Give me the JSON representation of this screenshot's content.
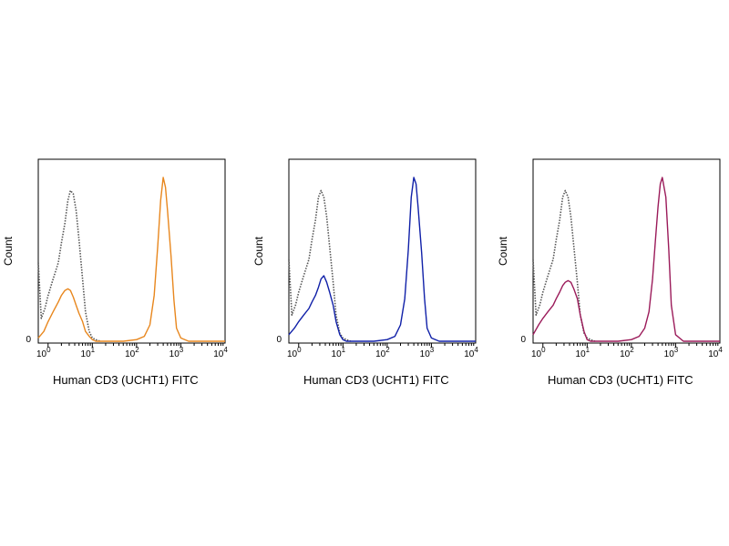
{
  "chart_data": [
    {
      "type": "line",
      "xlabel": "Human CD3 (UCHT1) FITC",
      "ylabel": "Count",
      "xscale": "log",
      "xlim": [
        0.6,
        10000
      ],
      "ylim": [
        0,
        100
      ],
      "x_tick_labels": [
        {
          "base": "10",
          "exp": "0"
        },
        {
          "base": "10",
          "exp": "1"
        },
        {
          "base": "10",
          "exp": "2"
        },
        {
          "base": "10",
          "exp": "3"
        },
        {
          "base": "10",
          "exp": "4"
        }
      ],
      "y_tick_labels": [
        "0"
      ],
      "series": [
        {
          "style": "dotted",
          "color": "#555555",
          "x": [
            0.6,
            0.7,
            0.85,
            1.0,
            1.3,
            1.7,
            2.0,
            2.4,
            2.8,
            3.2,
            3.7,
            4.3,
            5.0,
            6.0,
            7.0,
            8.5,
            10,
            12,
            15
          ],
          "y": [
            48,
            14,
            20,
            28,
            38,
            48,
            60,
            72,
            86,
            92,
            90,
            80,
            62,
            38,
            18,
            6,
            2,
            1,
            0
          ]
        },
        {
          "style": "solid",
          "color": "#e8871e",
          "x": [
            0.6,
            0.8,
            1.0,
            1.3,
            1.7,
            2.0,
            2.4,
            2.8,
            3.2,
            3.7,
            4.3,
            5.0,
            6.0,
            7.0,
            8.5,
            10,
            12,
            20,
            50,
            100,
            150,
            200,
            250,
            300,
            350,
            400,
            450,
            500,
            600,
            700,
            800,
            1000,
            1500,
            3000,
            10000
          ],
          "y": [
            2,
            6,
            12,
            18,
            24,
            28,
            31,
            32,
            31,
            27,
            22,
            17,
            12,
            6,
            3,
            1,
            0,
            0,
            0,
            1,
            3,
            10,
            28,
            58,
            86,
            100,
            94,
            80,
            52,
            25,
            8,
            2,
            0,
            0,
            0
          ]
        }
      ]
    },
    {
      "type": "line",
      "xlabel": "Human CD3 (UCHT1) FITC",
      "ylabel": "Count",
      "xscale": "log",
      "xlim": [
        0.6,
        10000
      ],
      "ylim": [
        0,
        100
      ],
      "x_tick_labels": [
        {
          "base": "10",
          "exp": "0"
        },
        {
          "base": "10",
          "exp": "1"
        },
        {
          "base": "10",
          "exp": "2"
        },
        {
          "base": "10",
          "exp": "3"
        },
        {
          "base": "10",
          "exp": "4"
        }
      ],
      "y_tick_labels": [
        "0"
      ],
      "series": [
        {
          "style": "dotted",
          "color": "#555555",
          "x": [
            0.6,
            0.7,
            0.85,
            1.0,
            1.3,
            1.7,
            2.0,
            2.4,
            2.8,
            3.2,
            3.7,
            4.3,
            5.0,
            6.0,
            7.0,
            8.5,
            10,
            12,
            15
          ],
          "y": [
            50,
            16,
            22,
            30,
            40,
            50,
            62,
            74,
            88,
            92,
            88,
            76,
            58,
            36,
            16,
            5,
            2,
            1,
            0
          ]
        },
        {
          "style": "solid",
          "color": "#1020a8",
          "x": [
            0.6,
            0.8,
            1.0,
            1.3,
            1.7,
            2.0,
            2.4,
            2.8,
            3.2,
            3.7,
            4.3,
            5.0,
            6.0,
            7.0,
            8.5,
            10,
            12,
            20,
            50,
            100,
            150,
            200,
            250,
            300,
            350,
            400,
            450,
            500,
            600,
            700,
            800,
            1000,
            1500,
            3000,
            10000
          ],
          "y": [
            4,
            8,
            12,
            16,
            20,
            24,
            28,
            33,
            38,
            40,
            36,
            30,
            22,
            12,
            4,
            1,
            0,
            0,
            0,
            1,
            3,
            10,
            26,
            56,
            88,
            100,
            96,
            82,
            54,
            26,
            8,
            2,
            0,
            0,
            0
          ]
        }
      ]
    },
    {
      "type": "line",
      "xlabel": "Human CD3 (UCHT1) FITC",
      "ylabel": "Count",
      "xscale": "log",
      "xlim": [
        0.6,
        10000
      ],
      "ylim": [
        0,
        100
      ],
      "x_tick_labels": [
        {
          "base": "10",
          "exp": "0"
        },
        {
          "base": "10",
          "exp": "1"
        },
        {
          "base": "10",
          "exp": "2"
        },
        {
          "base": "10",
          "exp": "3"
        },
        {
          "base": "10",
          "exp": "4"
        }
      ],
      "y_tick_labels": [
        "0"
      ],
      "series": [
        {
          "style": "dotted",
          "color": "#555555",
          "x": [
            0.6,
            0.7,
            0.85,
            1.0,
            1.3,
            1.7,
            2.0,
            2.4,
            2.8,
            3.2,
            3.7,
            4.3,
            5.0,
            6.0,
            7.0,
            8.5,
            10,
            12,
            15
          ],
          "y": [
            50,
            16,
            22,
            30,
            40,
            50,
            62,
            74,
            88,
            92,
            88,
            76,
            58,
            36,
            16,
            5,
            2,
            1,
            0
          ]
        },
        {
          "style": "solid",
          "color": "#9b1b5a",
          "x": [
            0.6,
            0.8,
            1.0,
            1.3,
            1.7,
            2.0,
            2.4,
            2.8,
            3.2,
            3.7,
            4.3,
            5.0,
            6.0,
            7.0,
            8.5,
            10,
            12,
            20,
            50,
            100,
            150,
            200,
            250,
            300,
            350,
            400,
            450,
            500,
            600,
            700,
            800,
            1000,
            1500,
            3000,
            10000
          ],
          "y": [
            4,
            10,
            14,
            18,
            22,
            26,
            30,
            34,
            36,
            37,
            36,
            32,
            26,
            16,
            6,
            1,
            0,
            0,
            0,
            1,
            3,
            8,
            18,
            38,
            62,
            82,
            96,
            100,
            88,
            56,
            22,
            4,
            0,
            0,
            0
          ]
        }
      ]
    }
  ]
}
